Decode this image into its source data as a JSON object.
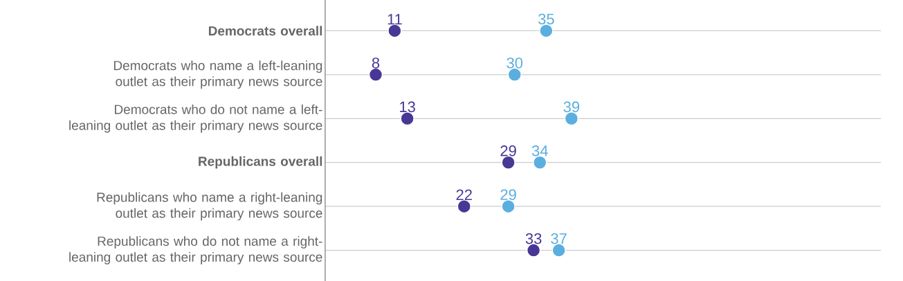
{
  "chart_data": {
    "type": "scatter",
    "orientation": "horizontal",
    "categories": [
      "**Democrats overall**",
      "Democrats who name a left-leaning outlet as their primary news source",
      "Democrats who do not name a left-leaning outlet as their primary news source",
      "**Republicans overall**",
      "Republicans who name a right-leaning outlet as their primary news source",
      "Republicans who do not name a right-leaning outlet as their primary news source"
    ],
    "series": [
      {
        "color": "#483795",
        "values": [
          11,
          8,
          13,
          29,
          22,
          33
        ]
      },
      {
        "color": "#5aafdf",
        "values": [
          35,
          30,
          39,
          34,
          29,
          37
        ]
      }
    ],
    "xlim": [
      0,
      88
    ],
    "grid": "y",
    "marker": "circle",
    "data_labels": true
  }
}
